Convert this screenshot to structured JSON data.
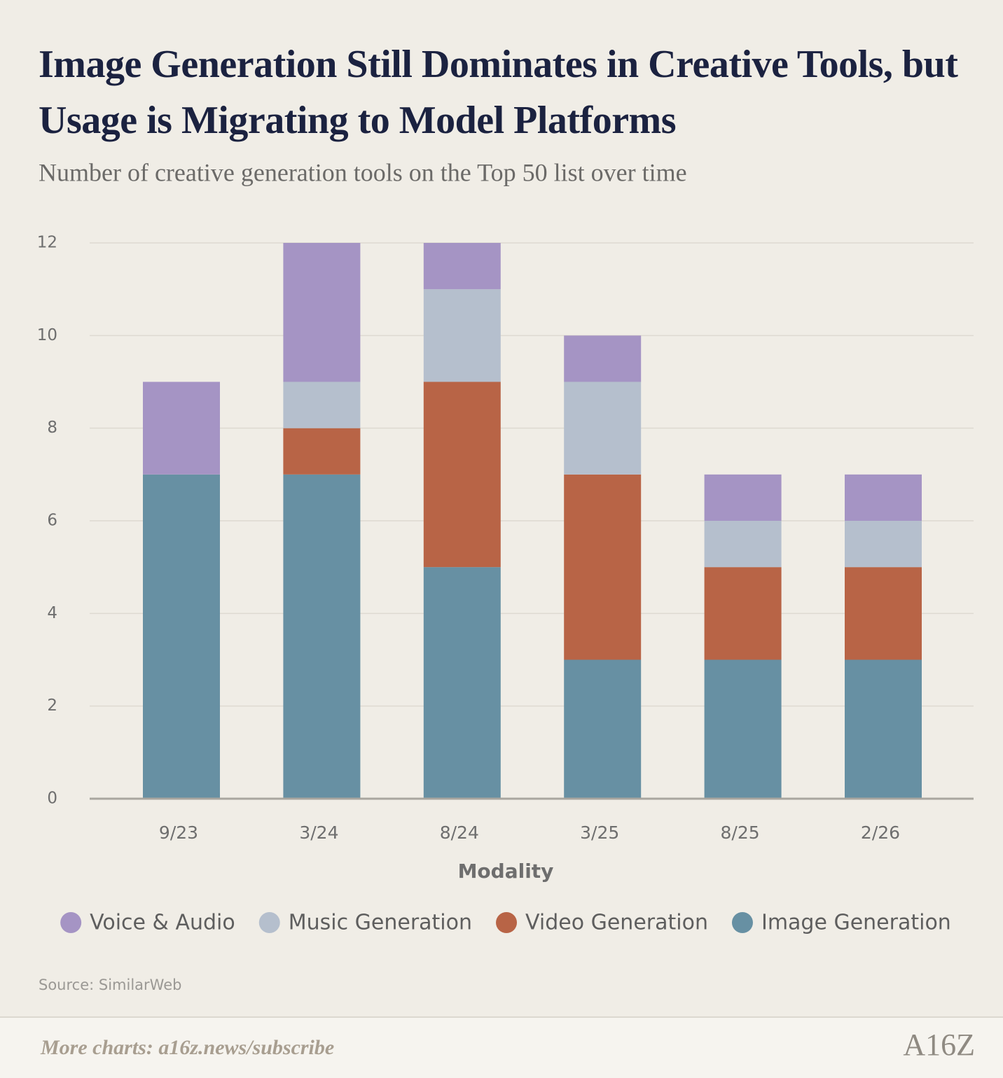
{
  "chart_data": {
    "type": "stacked_bar",
    "title": "Image Generation Still Dominates in Creative Tools, but Usage is Migrating to Model Platforms",
    "subtitle": "Number of creative generation tools on the Top 50 list over time",
    "x_label": "Modality",
    "categories": [
      "9/23",
      "3/24",
      "8/24",
      "3/25",
      "8/25",
      "2/26"
    ],
    "series": [
      {
        "name": "Voice & Audio",
        "color": "#a594c4",
        "values": [
          2,
          3,
          1,
          1,
          1,
          1
        ]
      },
      {
        "name": "Music Generation",
        "color": "#b5bfcd",
        "values": [
          0,
          1,
          2,
          2,
          1,
          1
        ]
      },
      {
        "name": "Video Generation",
        "color": "#b86446",
        "values": [
          0,
          1,
          4,
          4,
          2,
          2
        ]
      },
      {
        "name": "Image Generation",
        "color": "#6790a3",
        "values": [
          7,
          7,
          5,
          3,
          3,
          3
        ]
      }
    ],
    "ylim": [
      0,
      12
    ],
    "yticks": [
      0,
      2,
      4,
      6,
      8,
      10,
      12
    ],
    "grid": true,
    "legend": "bottom",
    "source": "Source: SimilarWeb"
  },
  "footer": {
    "text": "More charts: a16z.news/subscribe",
    "logo": "A16Z"
  }
}
